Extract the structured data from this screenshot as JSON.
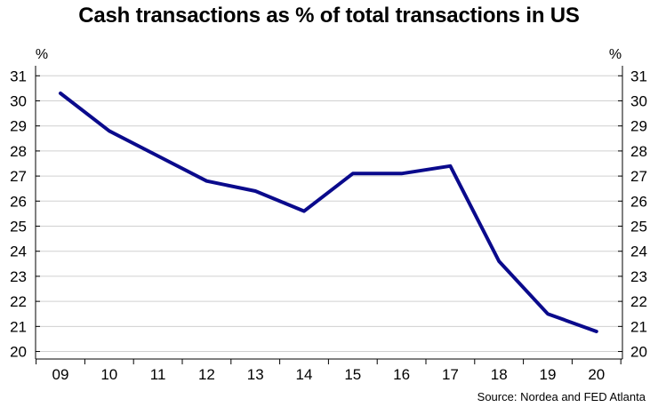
{
  "chart_data": {
    "type": "line",
    "title": "Cash transactions as % of total transactions in US",
    "y_unit_left": "%",
    "y_unit_right": "%",
    "categories": [
      "09",
      "10",
      "11",
      "12",
      "13",
      "14",
      "15",
      "16",
      "17",
      "18",
      "19",
      "20"
    ],
    "series": [
      {
        "values": [
          30.3,
          28.8,
          27.8,
          26.8,
          26.4,
          25.6,
          27.1,
          27.1,
          27.4,
          23.6,
          21.5,
          20.8
        ],
        "color": "#0a0a8c"
      }
    ],
    "ylim": [
      19.7,
      31.4
    ],
    "yticks": [
      20,
      21,
      22,
      23,
      24,
      25,
      26,
      27,
      28,
      29,
      30,
      31
    ],
    "grid": true,
    "grid_color": "#d0d0d0",
    "source": "Source: Nordea and FED Atlanta"
  }
}
